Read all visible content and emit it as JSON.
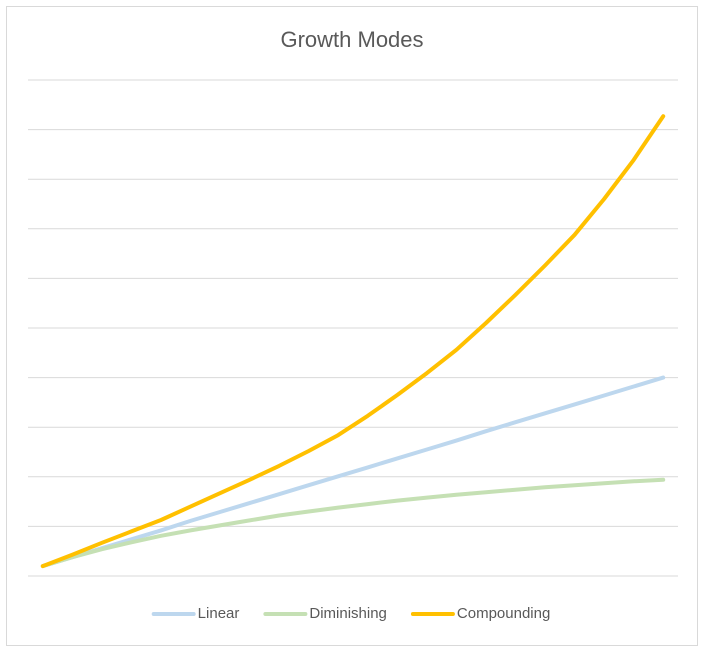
{
  "chart_data": {
    "type": "line",
    "title": "Growth Modes",
    "categories": [
      null,
      null,
      null,
      null,
      null,
      null,
      null,
      null,
      null,
      null,
      null,
      null,
      null,
      null,
      null,
      null,
      null,
      null,
      null,
      null,
      null,
      null
    ],
    "series": [
      {
        "name": "Linear",
        "color": "#bdd7ee",
        "values": [
          0.2,
          0.38,
          0.56,
          0.74,
          0.92,
          1.11,
          1.29,
          1.47,
          1.65,
          1.83,
          2.01,
          2.19,
          2.37,
          2.55,
          2.73,
          2.92,
          3.1,
          3.28,
          3.46,
          3.64,
          3.82,
          4.0
        ]
      },
      {
        "name": "Diminishing",
        "color": "#c5e0b4",
        "values": [
          0.2,
          0.38,
          0.54,
          0.68,
          0.81,
          0.92,
          1.02,
          1.12,
          1.22,
          1.3,
          1.38,
          1.45,
          1.52,
          1.58,
          1.64,
          1.69,
          1.74,
          1.79,
          1.83,
          1.87,
          1.91,
          1.94
        ]
      },
      {
        "name": "Compounding",
        "color": "#ffc000",
        "values": [
          0.2,
          0.43,
          0.67,
          0.9,
          1.13,
          1.4,
          1.67,
          1.94,
          2.22,
          2.52,
          2.84,
          3.23,
          3.65,
          4.09,
          4.56,
          5.1,
          5.67,
          6.26,
          6.88,
          7.6,
          8.39,
          9.27
        ]
      }
    ],
    "ylim": [
      0,
      10
    ],
    "yticks": [
      0,
      1,
      2,
      3,
      4,
      5,
      6,
      7,
      8,
      9,
      10
    ],
    "grid": true,
    "legend": "bottom"
  }
}
